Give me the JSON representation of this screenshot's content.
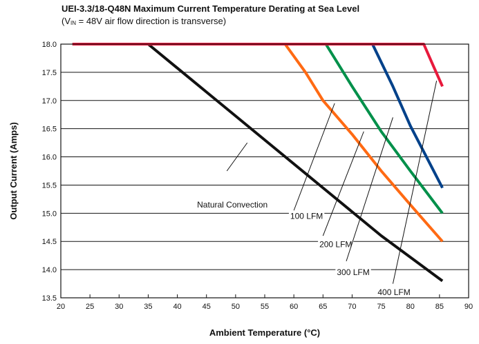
{
  "chart_data": {
    "type": "line",
    "title": "UEI-3.3/18-Q48N Maximum Current Temperature Derating at Sea Level",
    "subtitle": {
      "prefix": "(V",
      "sub": "IN",
      "suffix": " = 48V air flow direction is transverse)"
    },
    "xlabel": "Ambient Temperature (°C)",
    "ylabel": "Output Current (Amps)",
    "xlim": [
      20,
      90
    ],
    "ylim": [
      13.5,
      18.0
    ],
    "xticks": [
      "20",
      "25",
      "30",
      "35",
      "40",
      "45",
      "50",
      "55",
      "60",
      "65",
      "70",
      "75",
      "80",
      "85",
      "90"
    ],
    "yticks": [
      "13.5",
      "14.0",
      "14.5",
      "15.0",
      "15.5",
      "16.0",
      "16.5",
      "17.0",
      "17.5",
      "18.0"
    ],
    "grid": true,
    "series": [
      {
        "name": "Natural Convection",
        "color": "#111111",
        "x": [
          22,
          35,
          45,
          55,
          65,
          75,
          85.5
        ],
        "y": [
          18.0,
          18.0,
          17.15,
          16.3,
          15.45,
          14.6,
          13.8
        ]
      },
      {
        "name": "100 LFM",
        "color": "#ff6a13",
        "x": [
          22,
          58.5,
          62,
          65,
          70,
          75,
          80,
          85.5
        ],
        "y": [
          18.0,
          18.0,
          17.5,
          17.0,
          16.4,
          15.75,
          15.15,
          14.5
        ]
      },
      {
        "name": "200 LFM",
        "color": "#00904a",
        "x": [
          22,
          65.5,
          70,
          75,
          80,
          85.5
        ],
        "y": [
          18.0,
          18.0,
          17.25,
          16.45,
          15.75,
          15.0
        ]
      },
      {
        "name": "300 LFM",
        "color": "#00418a",
        "x": [
          22,
          73.5,
          77,
          80,
          83,
          85.5
        ],
        "y": [
          18.0,
          18.0,
          17.25,
          16.55,
          15.95,
          15.45
        ]
      },
      {
        "name": "400 LFM",
        "color": "#e8193c",
        "x": [
          22,
          82.3,
          84,
          85.5
        ],
        "y": [
          18.0,
          18.0,
          17.6,
          17.25
        ]
      }
    ],
    "annotations": [
      {
        "text": "Natural Convection",
        "x": 55.5,
        "y": 15.15,
        "anchor": "end",
        "lx": [
          48.5,
          52
        ],
        "ly": [
          15.75,
          16.25
        ]
      },
      {
        "text": "100 LFM",
        "x": 65,
        "y": 14.95,
        "anchor": "end",
        "lx": [
          60,
          67
        ],
        "ly": [
          15.05,
          16.95
        ]
      },
      {
        "text": "200 LFM",
        "x": 70,
        "y": 14.45,
        "anchor": "end",
        "lx": [
          65,
          72
        ],
        "ly": [
          14.6,
          16.45
        ]
      },
      {
        "text": "300 LFM",
        "x": 73,
        "y": 13.95,
        "anchor": "end",
        "lx": [
          69,
          77
        ],
        "ly": [
          14.15,
          16.7
        ]
      },
      {
        "text": "400 LFM",
        "x": 80,
        "y": 13.6,
        "anchor": "end",
        "lx": [
          77,
          84.5
        ],
        "ly": [
          13.75,
          17.35
        ]
      }
    ]
  }
}
